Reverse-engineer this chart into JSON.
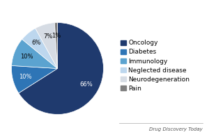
{
  "labels": [
    "Oncology",
    "Diabetes",
    "Immunology",
    "Neglected disease",
    "Neurodegeneration",
    "Pain"
  ],
  "values": [
    66,
    10,
    10,
    6,
    7,
    1
  ],
  "colors": [
    "#1f3a6e",
    "#2e75b6",
    "#5ba3d0",
    "#bdd7ee",
    "#d6dce4",
    "#7f7f7f"
  ],
  "startangle": 90,
  "autopct_fontsize": 6,
  "legend_fontsize": 6.5,
  "watermark": "Drug Discovery Today",
  "background_color": "#ffffff",
  "pct_colors": [
    "white",
    "white",
    "black",
    "black",
    "black",
    "black"
  ],
  "pctdistance": 0.72
}
